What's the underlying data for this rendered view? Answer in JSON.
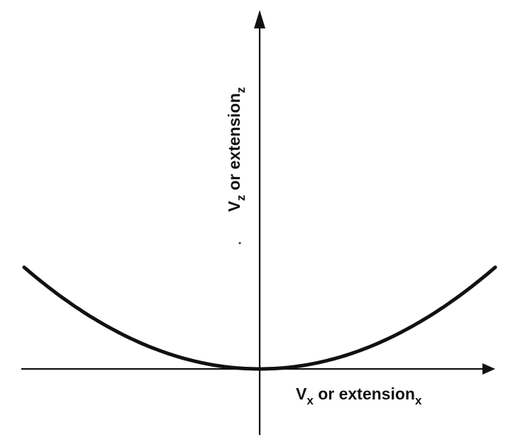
{
  "chart_data": {
    "type": "line",
    "title": "",
    "xlabel": {
      "main": "V",
      "sub": "x",
      "middle": " or extension",
      "sub2": "x"
    },
    "ylabel": {
      "main": "V",
      "sub": "z",
      "middle": " or extension",
      "sub2": "z"
    },
    "xlim": [
      -1,
      1
    ],
    "ylim": [
      0,
      1
    ],
    "grid": false,
    "legend": "none",
    "series": [
      {
        "x": [
          -1.0,
          -0.9,
          -0.8,
          -0.7,
          -0.6,
          -0.5,
          -0.4,
          -0.3,
          -0.2,
          -0.1,
          0.0,
          0.1,
          0.2,
          0.3,
          0.4,
          0.5,
          0.6,
          0.7,
          0.8,
          0.9,
          1.0
        ],
        "y": [
          1.0,
          0.81,
          0.64,
          0.49,
          0.36,
          0.25,
          0.16,
          0.09,
          0.04,
          0.01,
          0.0,
          0.01,
          0.04,
          0.09,
          0.16,
          0.25,
          0.36,
          0.49,
          0.64,
          0.81,
          1.0
        ]
      }
    ]
  },
  "colors": {
    "ink": "#111111",
    "background": "#ffffff"
  }
}
